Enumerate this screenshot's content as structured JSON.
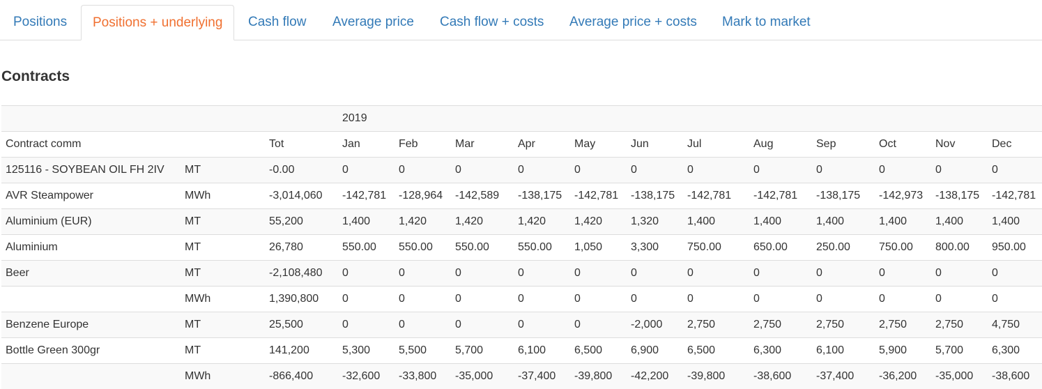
{
  "tabs": [
    {
      "label": "Positions",
      "active": false
    },
    {
      "label": "Positions + underlying",
      "active": true
    },
    {
      "label": "Cash flow",
      "active": false
    },
    {
      "label": "Average price",
      "active": false
    },
    {
      "label": "Cash flow + costs",
      "active": false
    },
    {
      "label": "Average price + costs",
      "active": false
    },
    {
      "label": "Mark to market",
      "active": false
    }
  ],
  "section_title": "Contracts",
  "table": {
    "year_label": "2019",
    "headers": [
      "Contract comm",
      "",
      "Tot",
      "Jan",
      "Feb",
      "Mar",
      "Apr",
      "May",
      "Jun",
      "Jul",
      "Aug",
      "Sep",
      "Oct",
      "Nov",
      "Dec"
    ],
    "rows": [
      [
        "125116 - SOYBEAN OIL FH 2IV",
        "MT",
        "-0.00",
        "0",
        "0",
        "0",
        "0",
        "0",
        "0",
        "0",
        "0",
        "0",
        "0",
        "0",
        "0"
      ],
      [
        "AVR Steampower",
        "MWh",
        "-3,014,060",
        "-142,781",
        "-128,964",
        "-142,589",
        "-138,175",
        "-142,781",
        "-138,175",
        "-142,781",
        "-142,781",
        "-138,175",
        "-142,973",
        "-138,175",
        "-142,781"
      ],
      [
        "Aluminium (EUR)",
        "MT",
        "55,200",
        "1,400",
        "1,420",
        "1,420",
        "1,420",
        "1,420",
        "1,320",
        "1,400",
        "1,400",
        "1,400",
        "1,400",
        "1,400",
        "1,400"
      ],
      [
        "Aluminium",
        "MT",
        "26,780",
        "550.00",
        "550.00",
        "550.00",
        "550.00",
        "1,050",
        "3,300",
        "750.00",
        "650.00",
        "250.00",
        "750.00",
        "800.00",
        "950.00"
      ],
      [
        "Beer",
        "MT",
        "-2,108,480",
        "0",
        "0",
        "0",
        "0",
        "0",
        "0",
        "0",
        "0",
        "0",
        "0",
        "0",
        "0"
      ],
      [
        "",
        "MWh",
        "1,390,800",
        "0",
        "0",
        "0",
        "0",
        "0",
        "0",
        "0",
        "0",
        "0",
        "0",
        "0",
        "0"
      ],
      [
        "Benzene Europe",
        "MT",
        "25,500",
        "0",
        "0",
        "0",
        "0",
        "0",
        "-2,000",
        "2,750",
        "2,750",
        "2,750",
        "2,750",
        "2,750",
        "4,750"
      ],
      [
        "Bottle Green 300gr",
        "MT",
        "141,200",
        "5,300",
        "5,500",
        "5,700",
        "6,100",
        "6,500",
        "6,900",
        "6,500",
        "6,300",
        "6,100",
        "5,900",
        "5,700",
        "6,300"
      ],
      [
        "",
        "MWh",
        "-866,400",
        "-32,600",
        "-33,800",
        "-35,000",
        "-37,400",
        "-39,800",
        "-42,200",
        "-39,800",
        "-38,600",
        "-37,400",
        "-36,200",
        "-35,000",
        "-38,600"
      ]
    ]
  }
}
